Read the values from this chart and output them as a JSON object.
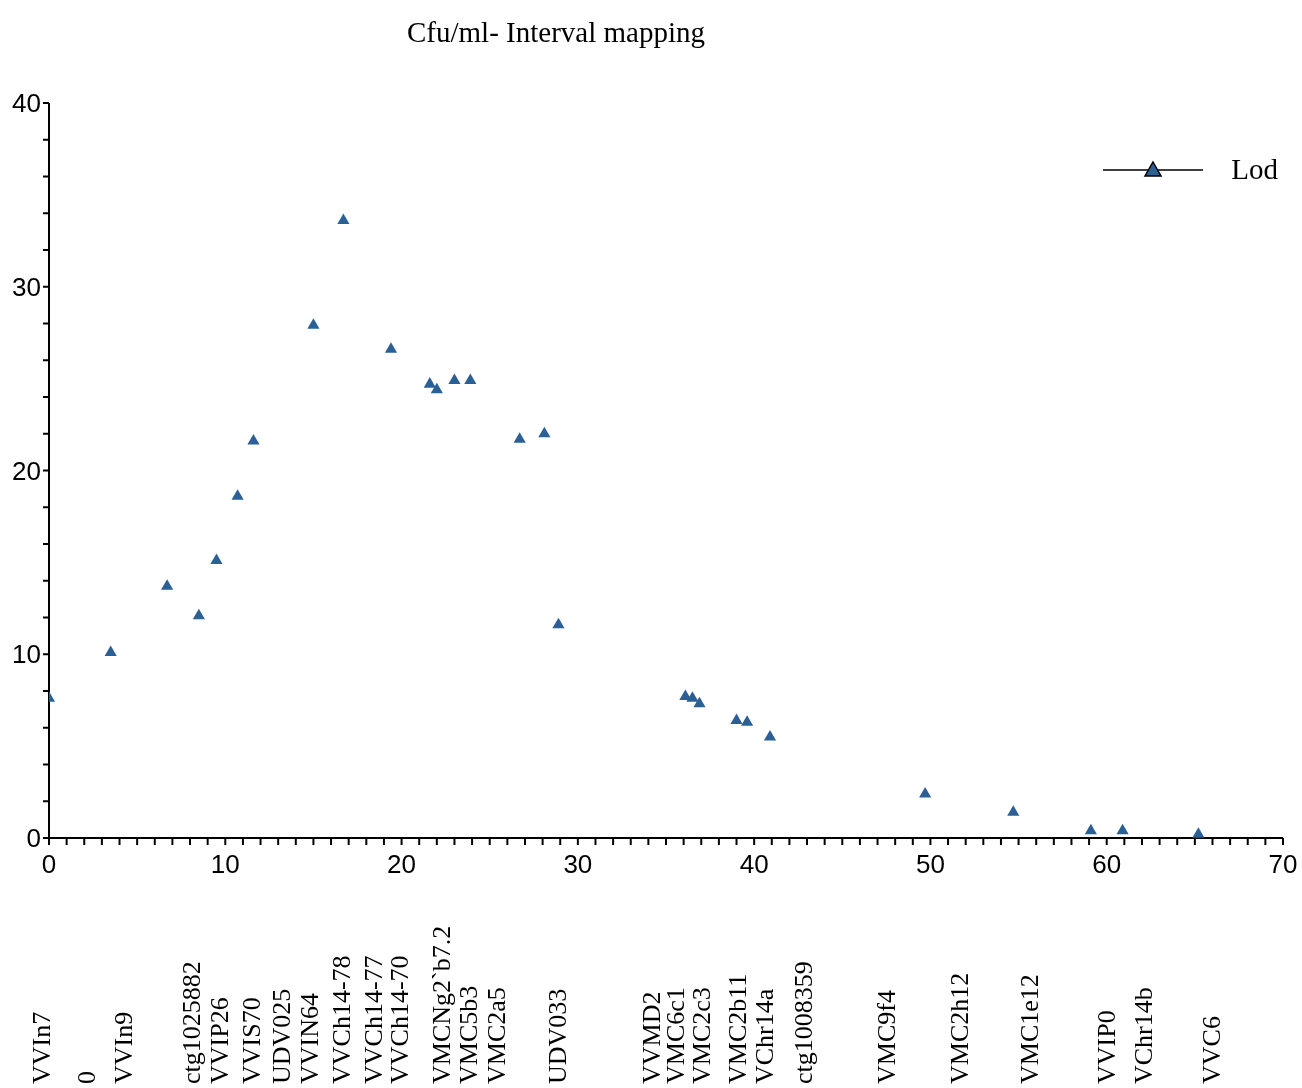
{
  "chart_data": {
    "type": "scatter",
    "title": "Cfu/ml- Interval mapping",
    "x": [
      0,
      3.5,
      6.7,
      8.5,
      9.5,
      10.7,
      11.6,
      15.0,
      16.7,
      19.4,
      21.6,
      22.0,
      23.0,
      23.9,
      26.7,
      28.1,
      28.9,
      36.1,
      36.5,
      36.9,
      39.0,
      39.6,
      40.9,
      49.7,
      54.7,
      59.1,
      60.9,
      65.2
    ],
    "series": [
      {
        "name": "Lod",
        "color": "#2a6096",
        "values": [
          7.6,
          10.1,
          13.7,
          12.1,
          15.1,
          18.6,
          21.6,
          27.9,
          33.6,
          26.6,
          24.7,
          24.4,
          24.9,
          24.9,
          21.7,
          22.0,
          11.6,
          7.7,
          7.6,
          7.3,
          6.4,
          6.3,
          5.5,
          2.4,
          1.4,
          0.4,
          0.4,
          0.2
        ]
      }
    ],
    "marker": "triangle",
    "legend": "top right",
    "xlim": [
      0,
      70
    ],
    "ylim": [
      0,
      40
    ],
    "xticks": [
      0,
      {
        "value": 1,
        "label": null
      },
      {
        "value": 2,
        "label": null
      },
      {
        "value": 3,
        "label": null
      },
      {
        "value": 4,
        "label": null
      },
      {
        "value": 5,
        "label": null
      },
      {
        "value": 6,
        "label": null
      },
      {
        "value": 7,
        "label": null
      },
      {
        "value": 8,
        "label": null
      },
      {
        "value": 9,
        "label": null
      },
      10,
      {
        "value": 11,
        "label": null
      },
      {
        "value": 12,
        "label": null
      },
      {
        "value": 13,
        "label": null
      },
      {
        "value": 14,
        "label": null
      },
      {
        "value": 15,
        "label": null
      },
      {
        "value": 16,
        "label": null
      },
      {
        "value": 17,
        "label": null
      },
      {
        "value": 18,
        "label": null
      },
      {
        "value": 19,
        "label": null
      },
      20,
      {
        "value": 21,
        "label": null
      },
      {
        "value": 22,
        "label": null
      },
      {
        "value": 23,
        "label": null
      },
      {
        "value": 24,
        "label": null
      },
      {
        "value": 25,
        "label": null
      },
      {
        "value": 26,
        "label": null
      },
      {
        "value": 27,
        "label": null
      },
      {
        "value": 28,
        "label": null
      },
      {
        "value": 29,
        "label": null
      },
      30,
      {
        "value": 31,
        "label": null
      },
      {
        "value": 32,
        "label": null
      },
      {
        "value": 33,
        "label": null
      },
      {
        "value": 34,
        "label": null
      },
      {
        "value": 35,
        "label": null
      },
      {
        "value": 36,
        "label": null
      },
      {
        "value": 37,
        "label": null
      },
      {
        "value": 38,
        "label": null
      },
      {
        "value": 39,
        "label": null
      },
      40,
      {
        "value": 41,
        "label": null
      },
      {
        "value": 42,
        "label": null
      },
      {
        "value": 43,
        "label": null
      },
      {
        "value": 44,
        "label": null
      },
      {
        "value": 45,
        "label": null
      },
      {
        "value": 46,
        "label": null
      },
      {
        "value": 47,
        "label": null
      },
      {
        "value": 48,
        "label": null
      },
      {
        "value": 49,
        "label": null
      },
      50,
      {
        "value": 51,
        "label": null
      },
      {
        "value": 52,
        "label": null
      },
      {
        "value": 53,
        "label": null
      },
      {
        "value": 54,
        "label": null
      },
      {
        "value": 55,
        "label": null
      },
      {
        "value": 56,
        "label": null
      },
      {
        "value": 57,
        "label": null
      },
      {
        "value": 58,
        "label": null
      },
      {
        "value": 59,
        "label": null
      },
      60,
      {
        "value": 61,
        "label": null
      },
      {
        "value": 62,
        "label": null
      },
      {
        "value": 63,
        "label": null
      },
      {
        "value": 64,
        "label": null
      },
      {
        "value": 65,
        "label": null
      },
      {
        "value": 66,
        "label": null
      },
      {
        "value": 67,
        "label": null
      },
      {
        "value": 68,
        "label": null
      },
      {
        "value": 69,
        "label": null
      },
      70
    ],
    "yticks": [
      0,
      {
        "value": 2,
        "label": null
      },
      {
        "value": 4,
        "label": null
      },
      {
        "value": 6,
        "label": null
      },
      {
        "value": 8,
        "label": null
      },
      10,
      {
        "value": 12,
        "label": null
      },
      {
        "value": 14,
        "label": null
      },
      {
        "value": 16,
        "label": null
      },
      {
        "value": 18,
        "label": null
      },
      20,
      {
        "value": 22,
        "label": null
      },
      {
        "value": 24,
        "label": null
      },
      {
        "value": 26,
        "label": null
      },
      {
        "value": 28,
        "label": null
      },
      30,
      {
        "value": 32,
        "label": null
      },
      {
        "value": 34,
        "label": null
      },
      {
        "value": 36,
        "label": null
      },
      {
        "value": 38,
        "label": null
      },
      40
    ],
    "annotations": [
      "VVIn7",
      "0",
      "VVIn9",
      "ctg1025882",
      "VVIP26",
      "VVIS70",
      "UDV025",
      "VVIN64",
      "VVCh14-78",
      "VVCh14-77",
      "VVCh14-70",
      "VMCNg2`b7.2",
      "VMC5b3",
      "VMC2a5",
      "UDV033",
      "VVMD2",
      "VMC6c1",
      "VMC2c3",
      "VMC2b11",
      "VChr14a",
      "ctg1008359",
      "VMC9f4",
      "VMC2h12",
      "VMC1e12",
      "VVIP0",
      "VChr14b",
      "VVC6"
    ]
  }
}
